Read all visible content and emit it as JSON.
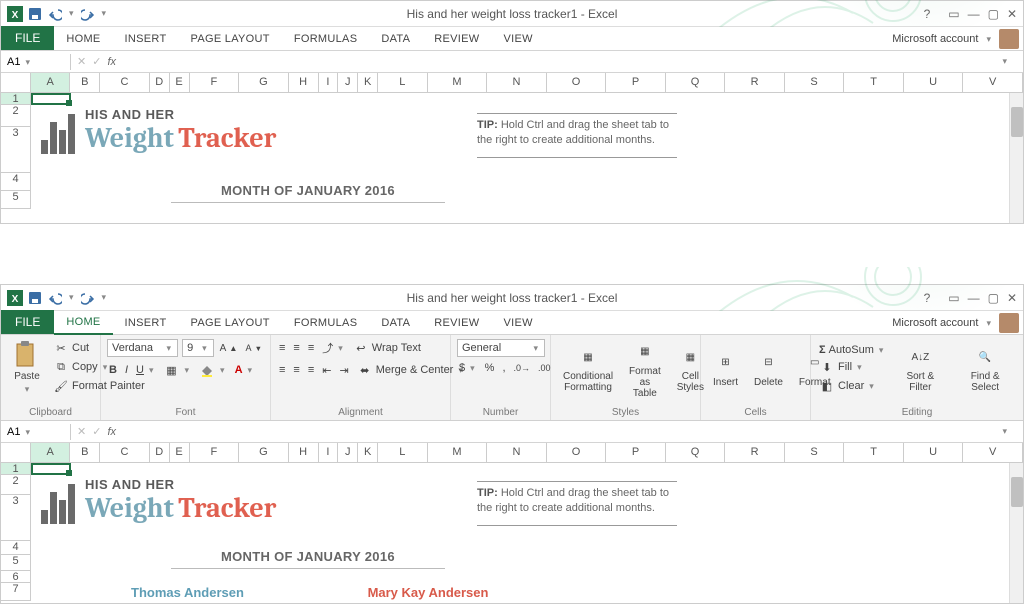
{
  "title": "His and her weight loss tracker1 - Excel",
  "colors": {
    "green": "#217346",
    "teal": "#7aa8b8",
    "orange": "#e06050",
    "her_blue": "#5e9db5",
    "his_red": "#d85a4a"
  },
  "qat_icons": [
    "excel",
    "save",
    "undo",
    "redo"
  ],
  "window_controls": {
    "help": "?",
    "opts": "▭",
    "min": "—",
    "max": "▢",
    "close": "✕"
  },
  "tabs": [
    "FILE",
    "HOME",
    "INSERT",
    "PAGE LAYOUT",
    "FORMULAS",
    "DATA",
    "REVIEW",
    "VIEW"
  ],
  "ms_account": "Microsoft account",
  "name_box": "A1",
  "formula_bar": "",
  "fx_label": "fx",
  "columns": [
    "A",
    "B",
    "C",
    "D",
    "E",
    "F",
    "G",
    "H",
    "I",
    "J",
    "K",
    "L",
    "M",
    "N",
    "O",
    "P",
    "Q",
    "R",
    "S",
    "T",
    "U",
    "V"
  ],
  "rows_top": [
    "1",
    "2",
    "3",
    "4",
    "5"
  ],
  "rows_bottom": [
    "1",
    "2",
    "3",
    "4",
    "5",
    "6",
    "7"
  ],
  "selected_cell": "A1",
  "logo": {
    "line1": "HIS AND HER",
    "weight": "Weight",
    "tracker": "Tracker"
  },
  "logo_bars": {
    "heights": [
      14,
      32,
      24,
      40
    ],
    "color": "#6a6a6a",
    "width": 7,
    "gap": 2
  },
  "tip": {
    "label": "TIP:",
    "text": "Hold Ctrl and drag the sheet tab to the right to create additional months."
  },
  "month": "MONTH OF JANUARY 2016",
  "names": {
    "her": "Thomas Andersen",
    "his": "Mary Kay Andersen"
  },
  "ribbon": {
    "clipboard": {
      "label": "Clipboard",
      "paste": "Paste",
      "cut": "Cut",
      "copy": "Copy",
      "format_painter": "Format Painter"
    },
    "font": {
      "label": "Font",
      "name": "Verdana",
      "size": "9",
      "grow": "A▲",
      "shrink": "A▼"
    },
    "alignment": {
      "label": "Alignment",
      "wrap": "Wrap Text",
      "merge": "Merge & Center"
    },
    "number": {
      "label": "Number",
      "format": "General",
      "currency": "$",
      "percent": "%",
      "comma": ",",
      "inc": "←0.0",
      "dec": ".00→"
    },
    "styles": {
      "label": "Styles",
      "cond": "Conditional Formatting",
      "fat": "Format as Table",
      "cell": "Cell Styles"
    },
    "cells": {
      "label": "Cells",
      "insert": "Insert",
      "delete": "Delete",
      "format": "Format"
    },
    "editing": {
      "label": "Editing",
      "autosum": "AutoSum",
      "fill": "Fill",
      "clear": "Clear",
      "sort": "Sort & Filter",
      "find": "Find & Select"
    }
  }
}
